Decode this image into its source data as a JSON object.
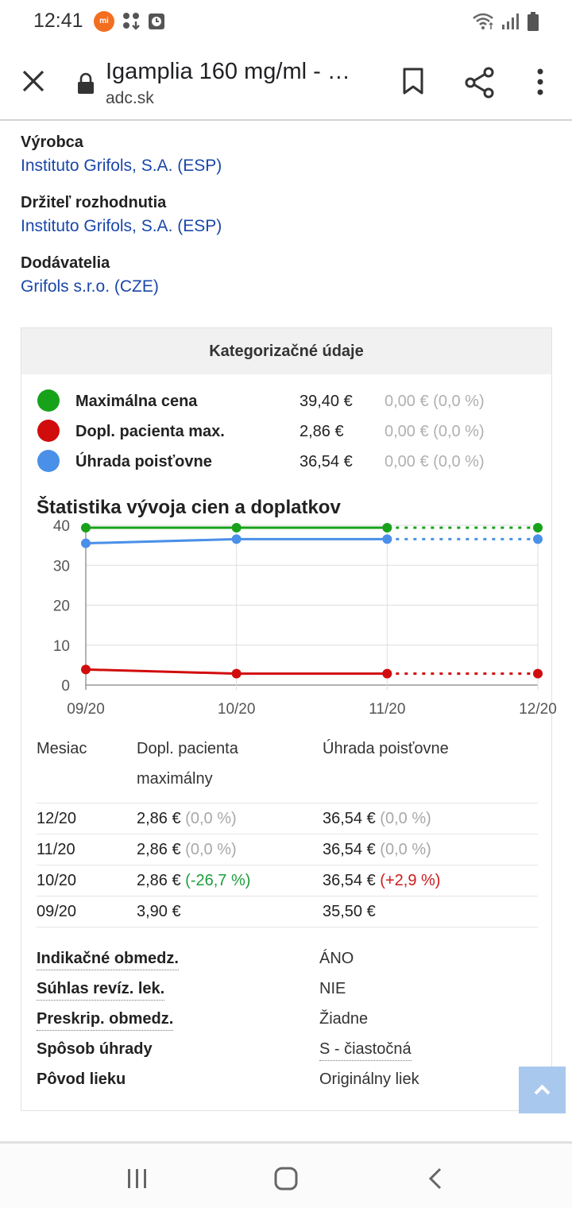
{
  "status_bar": {
    "time": "12:41",
    "mi_badge": "mi",
    "icons": [
      "mi-icon",
      "grid-download-icon",
      "clock-icon",
      "wifi-icon",
      "signal-icon",
      "battery-icon"
    ]
  },
  "toolbar": {
    "title": "Igamplia 160 mg/ml - …",
    "domain": "adc.sk",
    "icons": [
      "close-icon",
      "lock-icon",
      "bookmark-icon",
      "share-icon",
      "more-vert-icon"
    ]
  },
  "info": [
    {
      "label": "Výrobca",
      "value": "Instituto Grifols, S.A. (ESP)"
    },
    {
      "label": "Držiteľ rozhodnutia",
      "value": "Instituto Grifols, S.A. (ESP)"
    },
    {
      "label": "Dodávatelia",
      "value": "Grifols s.r.o. (CZE)"
    }
  ],
  "panel": {
    "title": "Kategorizačné údaje",
    "legend": [
      {
        "name": "Maximálna cena",
        "value": "39,40 €",
        "change": "0,00 € (0,0 %)",
        "color": "#17a21a"
      },
      {
        "name": "Dopl. pacienta max.",
        "value": "2,86 €",
        "change": "0,00 € (0,0 %)",
        "color": "#d10c0c"
      },
      {
        "name": "Úhrada poisťovne",
        "value": "36,54 €",
        "change": "0,00 € (0,0 %)",
        "color": "#4a90e8"
      }
    ],
    "chart_title": "Štatistika vývoja cien a doplatkov"
  },
  "chart_data": {
    "type": "line",
    "categories": [
      "09/20",
      "10/20",
      "11/20",
      "12/20"
    ],
    "ylim": [
      0,
      40
    ],
    "yticks": [
      0,
      10,
      20,
      30,
      40
    ],
    "grid": true,
    "dashed_last_segment": true,
    "series": [
      {
        "color": "#17a21a",
        "values": [
          39.4,
          39.4,
          39.4,
          39.4
        ]
      },
      {
        "color": "#4a90e8",
        "values": [
          35.5,
          36.54,
          36.54,
          36.54
        ]
      },
      {
        "color": "#d10c0c",
        "values": [
          3.9,
          2.86,
          2.86,
          2.86
        ]
      }
    ]
  },
  "monthly_table": {
    "headers": {
      "month": "Mesiac",
      "patient": "Dopl. pacienta maximálny",
      "insurer": "Úhrada poisťovne"
    },
    "rows": [
      {
        "month": "12/20",
        "patient": "2,86 €",
        "patient_change": "(0,0 %)",
        "insurer": "36,54 €",
        "insurer_change": "(0,0 %)",
        "patient_change_color": "gray",
        "insurer_change_color": "gray"
      },
      {
        "month": "11/20",
        "patient": "2,86 €",
        "patient_change": "(0,0 %)",
        "insurer": "36,54 €",
        "insurer_change": "(0,0 %)",
        "patient_change_color": "gray",
        "insurer_change_color": "gray"
      },
      {
        "month": "10/20",
        "patient": "2,86 €",
        "patient_change": "(-26,7 %)",
        "insurer": "36,54 €",
        "insurer_change": "(+2,9 %)",
        "patient_change_color": "green",
        "insurer_change_color": "red"
      },
      {
        "month": "09/20",
        "patient": "3,90 €",
        "patient_change": "",
        "insurer": "35,50 €",
        "insurer_change": "",
        "patient_change_color": "gray",
        "insurer_change_color": "gray"
      }
    ]
  },
  "attributes": [
    {
      "label": "Indikačné obmedz.",
      "value": "ÁNO",
      "label_link": true,
      "value_link": false
    },
    {
      "label": "Súhlas revíz. lek.",
      "value": "NIE",
      "label_link": true,
      "value_link": false
    },
    {
      "label": "Preskrip. obmedz.",
      "value": "Žiadne",
      "label_link": true,
      "value_link": false
    },
    {
      "label": "Spôsob úhrady",
      "value": "S - čiastočná",
      "label_link": false,
      "value_link": true
    },
    {
      "label": "Pôvod lieku",
      "value": "Originálny liek",
      "label_link": false,
      "value_link": false
    }
  ],
  "scroll_top_icon": "chevron-up-icon",
  "navbar": {
    "icons": [
      "recent-apps-icon",
      "home-icon",
      "back-icon"
    ]
  }
}
